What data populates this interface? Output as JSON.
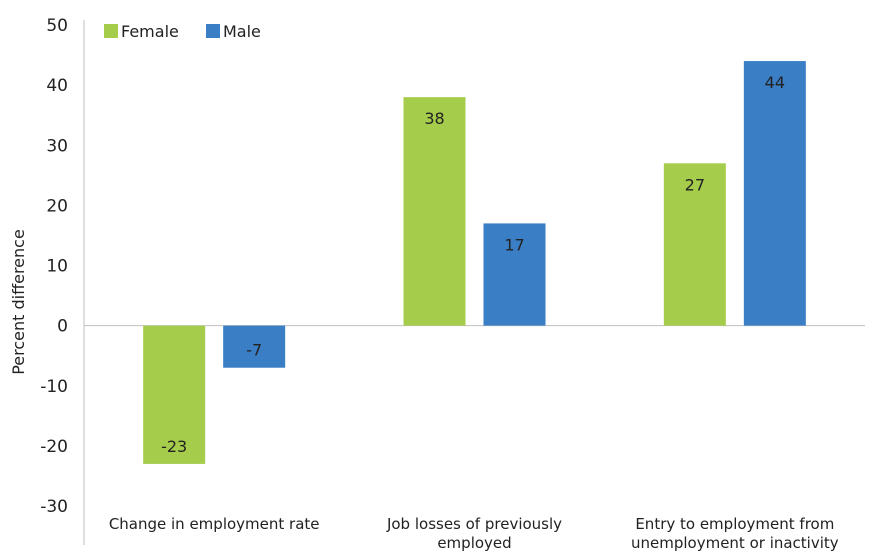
{
  "chart_data": {
    "type": "bar",
    "categories": [
      [
        "Change in employment rate"
      ],
      [
        "Job losses of previously",
        "employed"
      ],
      [
        "Entry to employment from",
        "unemployment or inactivity"
      ]
    ],
    "series": [
      {
        "name": "Female",
        "color": "#A5CD4B",
        "values": [
          -23,
          38,
          27
        ]
      },
      {
        "name": "Male",
        "color": "#3A7EC6",
        "values": [
          -7,
          17,
          44
        ]
      }
    ],
    "ylabel": "Percent difference",
    "ylim": [
      -30,
      50
    ],
    "yticks": [
      50,
      40,
      30,
      20,
      10,
      0,
      -10,
      -20,
      -30
    ],
    "legend": "top-left",
    "grid": false
  }
}
